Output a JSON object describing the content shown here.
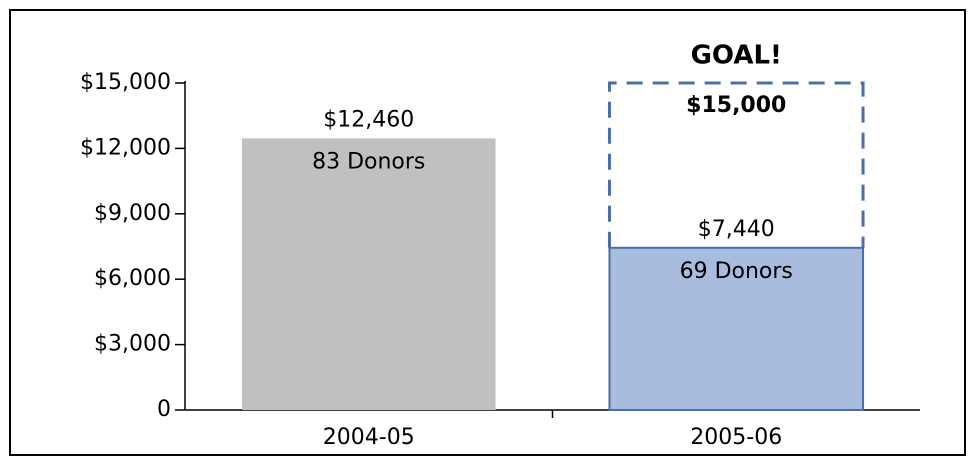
{
  "chart_data": {
    "type": "bar",
    "categories": [
      "2004-05",
      "2005-06"
    ],
    "values": [
      12460,
      7440
    ],
    "value_labels": [
      "$12,460",
      "$7,440"
    ],
    "donor_labels": [
      "83 Donors",
      "69 Donors"
    ],
    "colors": [
      "#c0c0c0",
      "#a8bcdd"
    ],
    "goal": {
      "label": "GOAL!",
      "value": 15000,
      "value_label": "$15,000",
      "color": "#4a6fa8"
    },
    "ylim": [
      0,
      15000
    ],
    "yticks": [
      0,
      {
        "value": 3000,
        "label": "$3,000"
      },
      {
        "value": 6000,
        "label": "$6,000"
      },
      {
        "value": 9000,
        "label": "$9,000"
      },
      {
        "value": 12000,
        "label": "$12,000"
      },
      {
        "value": 15000,
        "label": "$15,000"
      }
    ]
  }
}
